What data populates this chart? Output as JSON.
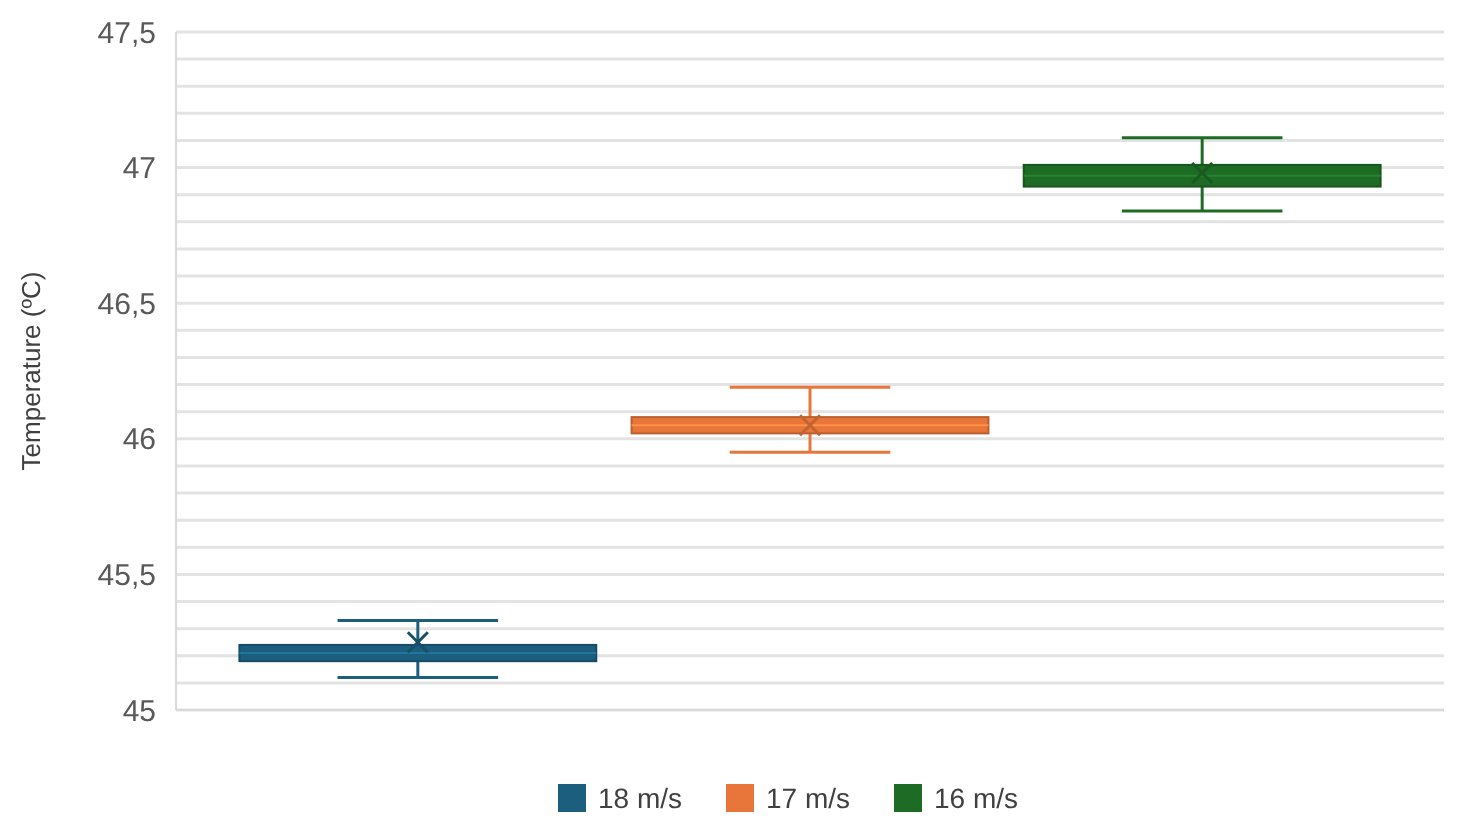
{
  "chart_data": {
    "type": "box",
    "ylabel": "Temperature (ºC)",
    "categories": [
      null
    ],
    "series": [
      {
        "name": "18 m/s",
        "color": "#1b5e7e",
        "boxes": [
          {
            "low": 45.12,
            "q1": 45.18,
            "median": 45.21,
            "q3": 45.24,
            "high": 45.33,
            "mean": 45.25
          }
        ]
      },
      {
        "name": "17 m/s",
        "color": "#e8763a",
        "boxes": [
          {
            "low": 45.95,
            "q1": 46.02,
            "median": 46.05,
            "q3": 46.08,
            "high": 46.19,
            "mean": 46.05
          }
        ]
      },
      {
        "name": "16 m/s",
        "color": "#1e6b25",
        "boxes": [
          {
            "low": 46.84,
            "q1": 46.93,
            "median": 46.97,
            "q3": 47.01,
            "high": 47.11,
            "mean": 46.98
          }
        ]
      }
    ],
    "ylim": [
      45,
      47.5
    ],
    "yticks": [
      45,
      {
        "value": 45.1,
        "label": null
      },
      {
        "value": 45.2,
        "label": null
      },
      {
        "value": 45.3,
        "label": null
      },
      {
        "value": 45.4,
        "label": null
      },
      {
        "value": 45.5,
        "label": "45,5"
      },
      {
        "value": 45.6,
        "label": null
      },
      {
        "value": 45.7,
        "label": null
      },
      {
        "value": 45.8,
        "label": null
      },
      {
        "value": 45.9,
        "label": null
      },
      46,
      {
        "value": 46.1,
        "label": null
      },
      {
        "value": 46.2,
        "label": null
      },
      {
        "value": 46.3,
        "label": null
      },
      {
        "value": 46.4,
        "label": null
      },
      {
        "value": 46.5,
        "label": "46,5"
      },
      {
        "value": 46.6,
        "label": null
      },
      {
        "value": 46.7,
        "label": null
      },
      {
        "value": 46.8,
        "label": null
      },
      {
        "value": 46.9,
        "label": null
      },
      47,
      {
        "value": 47.1,
        "label": null
      },
      {
        "value": 47.2,
        "label": null
      },
      {
        "value": 47.3,
        "label": null
      },
      {
        "value": 47.4,
        "label": null
      },
      {
        "value": 47.5,
        "label": "47,5"
      }
    ],
    "grid": true,
    "legend": "bottom",
    "marker": "cross"
  }
}
